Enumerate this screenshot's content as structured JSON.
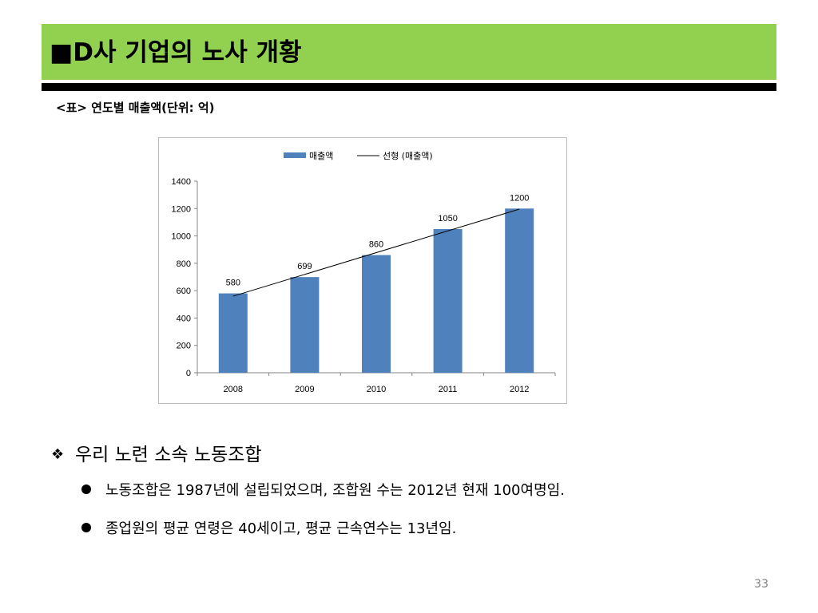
{
  "slide": {
    "title": "■D사 기업의 노사 개황",
    "table_caption": "<표> 연도별 매출액(단위: 억)",
    "section_heading": "우리 노련 소속 노동조합",
    "section_glyph": "❖",
    "bullets": [
      "노동조합은 1987년에 설립되었으며, 조합원 수는 2012년 현재 100여명임.",
      "종업원의 평균 연령은 40세이고, 평균 근속연수는 13년임."
    ],
    "page_number": "33"
  },
  "colors": {
    "title_bar": "#92d050",
    "bar": "#4f81bd"
  },
  "chart_data": {
    "type": "bar",
    "title": "",
    "categories": [
      "2008",
      "2009",
      "2010",
      "2011",
      "2012"
    ],
    "series": [
      {
        "name": "매출액",
        "values": [
          580,
          699,
          860,
          1050,
          1200
        ]
      }
    ],
    "trendline": {
      "name": "선형 (매출액)",
      "kind": "linear"
    },
    "legend": [
      "매출액",
      "선형 (매출액)"
    ],
    "legend_position": "top",
    "ylim": [
      0,
      1400
    ],
    "yticks": [
      "0",
      "200",
      "400",
      "600",
      "800",
      "1000",
      "1200",
      "1400"
    ],
    "data_labels": [
      "580",
      "699",
      "860",
      "1050",
      "1200"
    ],
    "grid": false
  }
}
